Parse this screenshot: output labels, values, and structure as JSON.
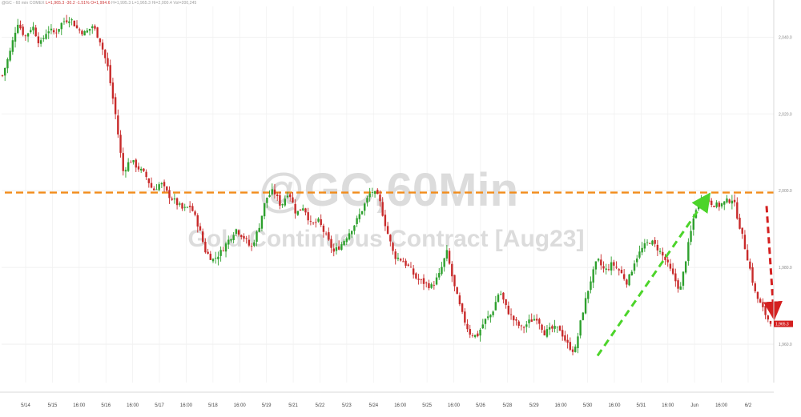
{
  "info_bar": {
    "symbol": "@GC - 60 min",
    "exchange": "COMEX",
    "last": "L=1,965.3",
    "change": "-30.2",
    "pct": "-1.51%",
    "open": "O=1,994.6",
    "ohlc_rest": "H=1,995.3 L=1,965.3 Hi=2,000.4 Vol=200,245"
  },
  "watermark": {
    "line1": "@GC,60Min",
    "line2": "Gold Continuous Contract [Aug23]"
  },
  "colors": {
    "up": "#2ea02e",
    "down": "#c82a2a",
    "resistance": "#f28c1b",
    "trend_up": "#4cd42a",
    "trend_down": "#d42020",
    "last_price_bg": "#d42020"
  },
  "chart_data": {
    "type": "candlestick",
    "symbol": "@GC",
    "interval": "60Min",
    "title": "Gold Continuous Contract [Aug23]",
    "x_tick_labels": [
      "5/14",
      "5/15",
      "16:00",
      "5/16",
      "16:00",
      "5/17",
      "16:00",
      "5/18",
      "16:00",
      "5/19",
      "5/21",
      "5/22",
      "5/23",
      "5/24",
      "16:00",
      "5/25",
      "16:00",
      "5/26",
      "5/28",
      "5/29",
      "16:00",
      "5/30",
      "16:00",
      "5/31",
      "16:00",
      "Jun",
      "16:00",
      "6/2"
    ],
    "y_tick_labels": [
      "2,040.0",
      "2,020.0",
      "2,000.0",
      "1,980.0",
      "1,960.0"
    ],
    "y_ticks": [
      2040,
      2020,
      2000,
      1980,
      1960
    ],
    "ylim": [
      1950,
      2048
    ],
    "last_price": 1965.3,
    "last_price_label": "1,965.3",
    "resistance_level": 1999.5,
    "close_path": [
      2030,
      2036,
      2044,
      2040,
      2043,
      2038,
      2042,
      2041,
      2044,
      2045,
      2042,
      2041,
      2043,
      2039,
      2032,
      2020,
      2005,
      2008,
      2006,
      2004,
      2000,
      2002,
      1999,
      1997,
      1995,
      1996,
      1991,
      1984,
      1982,
      1984,
      1987,
      1990,
      1988,
      1985,
      1990,
      1998,
      2000,
      1996,
      2000,
      1994,
      1996,
      1991,
      1992,
      1988,
      1984,
      1986,
      1989,
      1992,
      1996,
      2000,
      1998,
      1990,
      1983,
      1982,
      1980,
      1977,
      1976,
      1975,
      1978,
      1984,
      1975,
      1968,
      1963,
      1962,
      1966,
      1968,
      1974,
      1969,
      1966,
      1964,
      1966,
      1967,
      1963,
      1964,
      1964,
      1960,
      1958,
      1968,
      1976,
      1982,
      1979,
      1981,
      1979,
      1976,
      1982,
      1985,
      1987,
      1985,
      1982,
      1978,
      1974,
      1985,
      1995,
      1999,
      1997,
      1996,
      1997,
      1998,
      1990,
      1982,
      1973,
      1969,
      1965.3
    ],
    "annotations": [
      {
        "type": "horizontal_line",
        "style": "dashed",
        "color": "orange",
        "level": 1999.5
      },
      {
        "type": "arrow",
        "style": "dashed",
        "color": "green",
        "direction": "up",
        "from_price": 1957,
        "to_price": 1998
      },
      {
        "type": "arrow",
        "style": "dashed",
        "color": "red",
        "direction": "down",
        "from_price": 1996,
        "to_price": 1968
      }
    ],
    "grid": true
  }
}
